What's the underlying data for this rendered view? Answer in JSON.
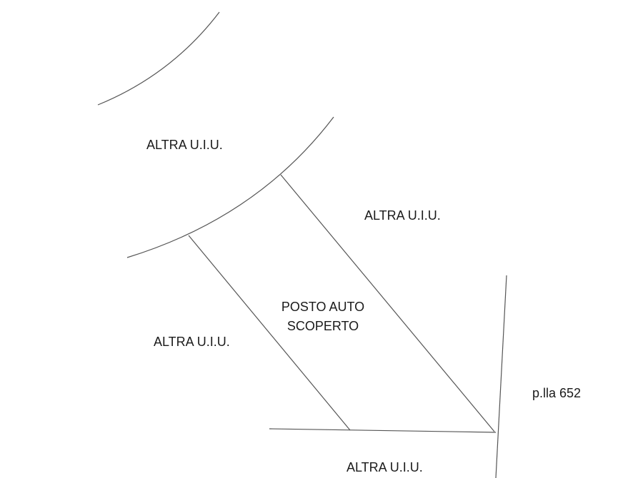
{
  "labels": {
    "altra_uiu_top_left": "ALTRA U.I.U.",
    "altra_uiu_top_right": "ALTRA U.I.U.",
    "altra_uiu_mid_left": "ALTRA U.I.U.",
    "altra_uiu_bottom": "ALTRA U.I.U.",
    "posto_auto_line1": "POSTO AUTO",
    "posto_auto_line2": "SCOPERTO",
    "parcel": "p.lla 652"
  },
  "colors": {
    "line": "#555555",
    "text": "#1a1a1a",
    "background": "#ffffff"
  }
}
